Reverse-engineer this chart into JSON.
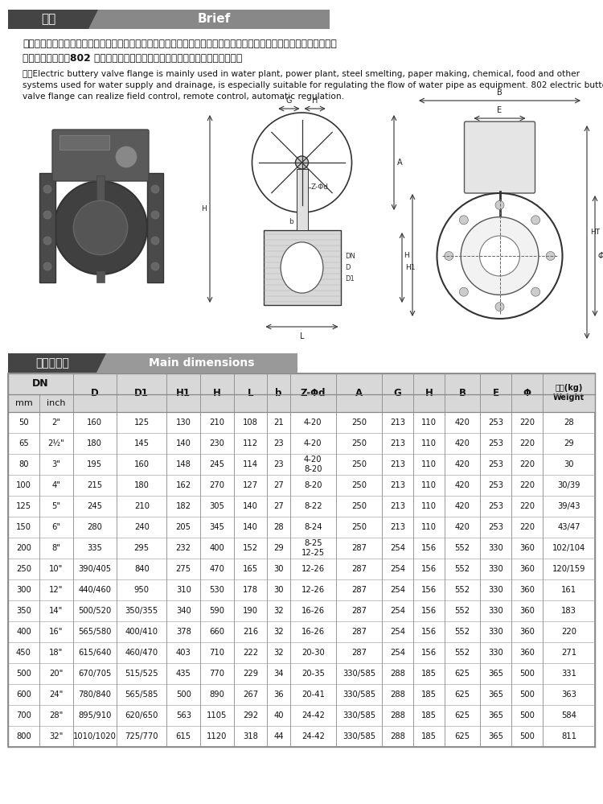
{
  "title_cn": "简介",
  "title_en": "Brief",
  "desc_cn_1": "　　电动法兰蝶阀主要适用于水厂、电厂、钢厂冶炼、造纸、化工、饮食等系统给排水用，尤为适用自来水管路上作为调",
  "desc_cn_2": "节流量设备使用。802 型电动法兰蝶阀可实现现场控制，远程控制，自动调节。",
  "desc_en_1": "　　Electric buttery valve flange is mainly used in water plant, power plant, steel smelting, paper making, chemical, food and other",
  "desc_en_2": "systems used for water supply and drainage, is especially suitable for regulating the flow of water pipe as equipment. 802 electric butterfly",
  "desc_en_3": "valve flange can realize field control, remote control, automatic regulation.",
  "table_title_cn": "主要尺寸表",
  "table_title_en": "Main dimensions",
  "header_bg1": "#444444",
  "header_bg2": "#888888",
  "header_text_color": "#ffffff",
  "section_header_bg1": "#444444",
  "section_header_bg2": "#999999",
  "bg_color": "#ffffff",
  "rows": [
    [
      "50",
      "2\"",
      "160",
      "125",
      "130",
      "210",
      "108",
      "21",
      "4-20",
      "250",
      "213",
      "110",
      "420",
      "253",
      "220",
      "28"
    ],
    [
      "65",
      "2½\"",
      "180",
      "145",
      "140",
      "230",
      "112",
      "23",
      "4-20",
      "250",
      "213",
      "110",
      "420",
      "253",
      "220",
      "29"
    ],
    [
      "80",
      "3\"",
      "195",
      "160",
      "148",
      "245",
      "114",
      "23",
      "4-20\n8-20",
      "250",
      "213",
      "110",
      "420",
      "253",
      "220",
      "30"
    ],
    [
      "100",
      "4\"",
      "215",
      "180",
      "162",
      "270",
      "127",
      "27",
      "8-20",
      "250",
      "213",
      "110",
      "420",
      "253",
      "220",
      "30/39"
    ],
    [
      "125",
      "5\"",
      "245",
      "210",
      "182",
      "305",
      "140",
      "27",
      "8-22",
      "250",
      "213",
      "110",
      "420",
      "253",
      "220",
      "39/43"
    ],
    [
      "150",
      "6\"",
      "280",
      "240",
      "205",
      "345",
      "140",
      "28",
      "8-24",
      "250",
      "213",
      "110",
      "420",
      "253",
      "220",
      "43/47"
    ],
    [
      "200",
      "8\"",
      "335",
      "295",
      "232",
      "400",
      "152",
      "29",
      "8-25\n12-25",
      "287",
      "254",
      "156",
      "552",
      "330",
      "360",
      "102/104"
    ],
    [
      "250",
      "10\"",
      "390/405",
      "840",
      "275",
      "470",
      "165",
      "30",
      "12-26",
      "287",
      "254",
      "156",
      "552",
      "330",
      "360",
      "120/159"
    ],
    [
      "300",
      "12\"",
      "440/460",
      "950",
      "310",
      "530",
      "178",
      "30",
      "12-26",
      "287",
      "254",
      "156",
      "552",
      "330",
      "360",
      "161"
    ],
    [
      "350",
      "14\"",
      "500/520",
      "350/355",
      "340",
      "590",
      "190",
      "32",
      "16-26",
      "287",
      "254",
      "156",
      "552",
      "330",
      "360",
      "183"
    ],
    [
      "400",
      "16\"",
      "565/580",
      "400/410",
      "378",
      "660",
      "216",
      "32",
      "16-26",
      "287",
      "254",
      "156",
      "552",
      "330",
      "360",
      "220"
    ],
    [
      "450",
      "18\"",
      "615/640",
      "460/470",
      "403",
      "710",
      "222",
      "32",
      "20-30",
      "287",
      "254",
      "156",
      "552",
      "330",
      "360",
      "271"
    ],
    [
      "500",
      "20\"",
      "670/705",
      "515/525",
      "435",
      "770",
      "229",
      "34",
      "20-35",
      "330/585",
      "288",
      "185",
      "625",
      "365",
      "500",
      "331"
    ],
    [
      "600",
      "24\"",
      "780/840",
      "565/585",
      "500",
      "890",
      "267",
      "36",
      "20-41",
      "330/585",
      "288",
      "185",
      "625",
      "365",
      "500",
      "363"
    ],
    [
      "700",
      "28\"",
      "895/910",
      "620/650",
      "563",
      "1105",
      "292",
      "40",
      "24-42",
      "330/585",
      "288",
      "185",
      "625",
      "365",
      "500",
      "584"
    ],
    [
      "800",
      "32\"",
      "1010/1020",
      "725/770",
      "615",
      "1120",
      "318",
      "44",
      "24-42",
      "330/585",
      "288",
      "185",
      "625",
      "365",
      "500",
      "811"
    ]
  ]
}
